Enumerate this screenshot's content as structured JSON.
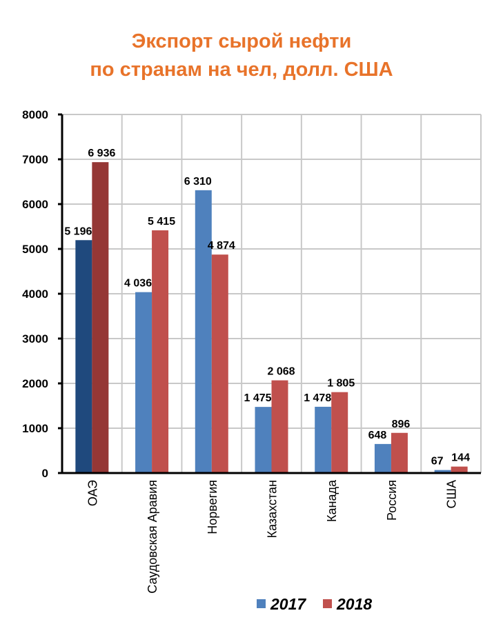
{
  "chart_data": {
    "type": "bar",
    "title": [
      "Экспорт сырой нефти",
      "по странам на чел, долл. США"
    ],
    "categories": [
      "ОАЭ",
      "Саудовская Аравия",
      "Норвегия",
      "Казахстан",
      "Канада",
      "Россия",
      "США"
    ],
    "series": [
      {
        "name": "2017",
        "color": "#4F81BD",
        "highlight_color": "#1F497D",
        "values": [
          5196,
          4036,
          6310,
          1475,
          1478,
          648,
          67
        ],
        "labels": [
          "5 196",
          "4 036",
          "6 310",
          "1 475",
          "1 478",
          "648",
          "67"
        ]
      },
      {
        "name": "2018",
        "color": "#C0504D",
        "highlight_color": "#953735",
        "values": [
          6936,
          5415,
          4874,
          2068,
          1805,
          896,
          144
        ],
        "labels": [
          "6 936",
          "5 415",
          "4 874",
          "2 068",
          "1 805",
          "896",
          "144"
        ]
      }
    ],
    "ylim": [
      0,
      8000
    ],
    "yticks": [
      "0",
      "1000",
      "2000",
      "3000",
      "4000",
      "5000",
      "6000",
      "7000",
      "8000"
    ],
    "grid": true,
    "legend": "bottom-right",
    "xlabel": "",
    "ylabel": ""
  }
}
